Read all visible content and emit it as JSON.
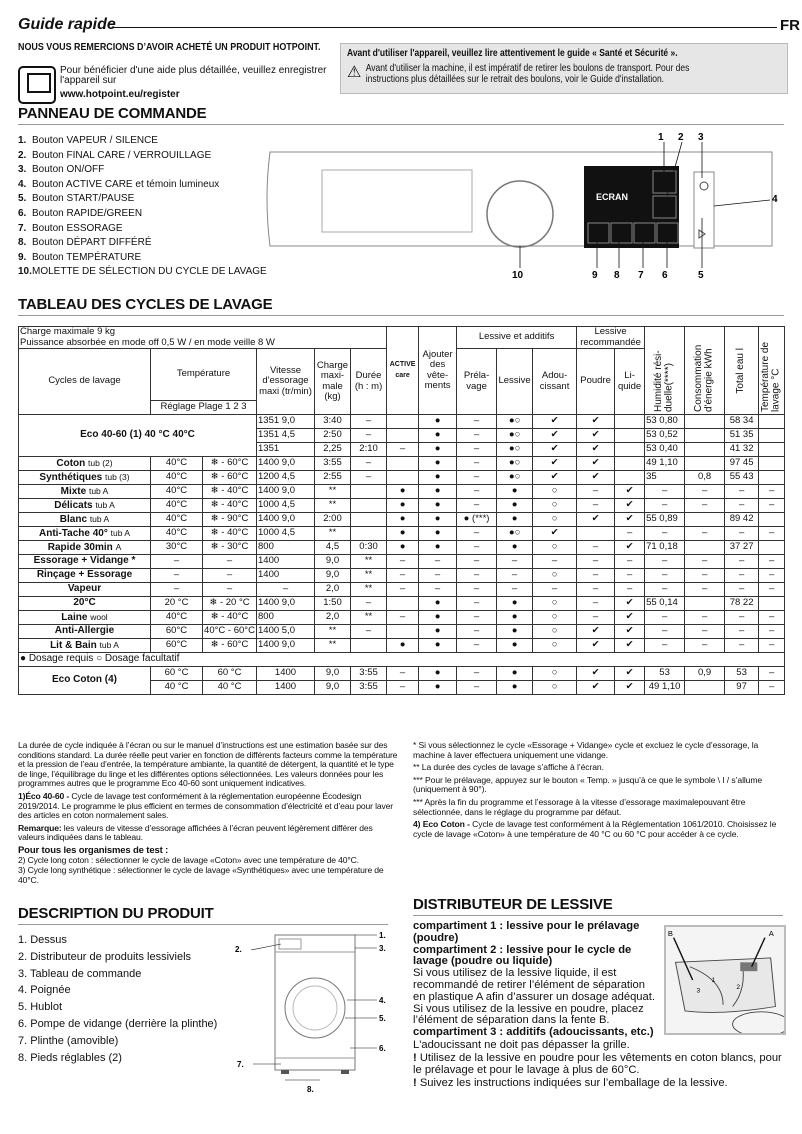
{
  "header": {
    "title": "Guide rapide",
    "lang": "FR"
  },
  "intro": {
    "thanks": "NOUS VOUS REMERCIONS D’AVOIR ACHETÉ UN PRODUIT HOTPOINT.",
    "register_text": "Pour bénéficier d'une aide plus détaillée, veuillez enregistrer l'appareil sur",
    "register_url": "www.hotpoint.eu/register"
  },
  "warning": {
    "title": "Avant d'utiliser l'appareil, veuillez lire attentivement le guide « Santé et Sécurité ».",
    "text": "Avant d'utiliser la machine, il est impératif de retirer les boulons de transport. Pour des instructions plus détaillées sur le retrait des boulons, voir le Guide d'installation."
  },
  "panel": {
    "title": "PANNEAU DE COMMANDE",
    "screen_label": "ECRAN",
    "items": [
      {
        "n": "1.",
        "label": "Bouton VAPEUR / SILENCE"
      },
      {
        "n": "2.",
        "label": "Bouton FINAL CARE / VERROUILLAGE"
      },
      {
        "n": "3.",
        "label": "Bouton ON/OFF"
      },
      {
        "n": "4.",
        "label": "Bouton ACTIVE CARE et témoin lumineux"
      },
      {
        "n": "5.",
        "label": "Bouton START/PAUSE"
      },
      {
        "n": "6.",
        "label": "Bouton RAPIDE/GREEN"
      },
      {
        "n": "7.",
        "label": "Bouton ESSORAGE"
      },
      {
        "n": "8.",
        "label": "Bouton DÉPART DIFFÉRÉ"
      },
      {
        "n": "9.",
        "label": "Bouton TEMPÉRATURE"
      },
      {
        "n": "10.",
        "label": "MOLETTE DE SÉLECTION DU CYCLE DE LAVAGE"
      }
    ],
    "callouts": [
      "1",
      "2",
      "3",
      "4",
      "5",
      "6",
      "7",
      "8",
      "9",
      "10"
    ]
  },
  "cycles": {
    "title": "TABLEAU DES CYCLES DE LAVAGE",
    "info": [
      "Charge maximale 9 kg",
      "Puissance absorbée en mode off  0,5 W / en mode veille 8 W"
    ],
    "headers": {
      "cycles": "Cycles de lavage",
      "temperature": "Température",
      "reglage_plage": "Réglage Plage 1 2 3",
      "vitesse": "Vitesse d'essorage maxi (tr/min)",
      "charge": "Charge maxi-male (kg)",
      "duree": "Durée (h : m)",
      "active_care": "ACTIVE care",
      "ajouter": "Ajouter des vête-ments",
      "lessive_additifs": "Lessive et additifs",
      "prelavage": "Préla-vage",
      "lessive": "Lessive",
      "adoucissant": "Adou-cissant",
      "lessive_recommandee": "Lessive recommandée",
      "poudre": "Poudre",
      "liquide": "Li-quide",
      "humidite": "Humidité rési-duelle(****)",
      "consommation": "Consommation d'énergie kWh",
      "eau": "Total eau l",
      "temp_lavage": "Température de lavage °C"
    },
    "rows": [
      {
        "name": "Eco 40-60 (1) 40 °C 40°C",
        "span": 3,
        "cells": [
          "1351 9,0",
          "3:40",
          "–",
          "",
          "●",
          "–",
          "●○",
          "✔",
          "✔",
          "",
          "53 0,80",
          "",
          "58 34",
          ""
        ]
      },
      {
        "cells": [
          "1351 4,5",
          "2:50",
          "–",
          "",
          "●",
          "–",
          "●○",
          "✔",
          "✔",
          "",
          "53 0,52",
          "",
          "51 35",
          ""
        ]
      },
      {
        "cells": [
          "1351",
          "2,25",
          "2:10",
          "–",
          "●",
          "–",
          "●○",
          "✔",
          "✔",
          "",
          "53 0,40",
          "",
          "41 32",
          ""
        ]
      },
      {
        "name": "Coton",
        "icons": "tub (2)",
        "cells": [
          "40°C",
          "❄ - 60°C",
          "1400 9,0",
          "3:55",
          "–",
          "",
          "●",
          "–",
          "●○",
          "✔",
          "✔",
          "",
          "49 1,10",
          "",
          "97 45",
          ""
        ]
      },
      {
        "name": "Synthétiques",
        "icons": "tub (3)",
        "cells": [
          "40°C",
          "❄ - 60°C",
          "1200 4,5",
          "2:55",
          "–",
          "",
          "●",
          "–",
          "●○",
          "✔",
          "✔",
          "",
          "35",
          "0,8",
          "55 43",
          ""
        ]
      },
      {
        "name": "Mixte",
        "icons": "tub A",
        "cells": [
          "40°C",
          "❄ - 40°C",
          "1400 9,0",
          "**",
          "",
          "●",
          "●",
          "–",
          "●",
          "○",
          "–",
          "✔",
          "–",
          "–",
          "–",
          "–"
        ]
      },
      {
        "name": "Délicats",
        "icons": "tub A",
        "cells": [
          "40°C",
          "❄ - 40°C",
          "1000 4,5",
          "**",
          "",
          "●",
          "●",
          "–",
          "●",
          "○",
          "–",
          "✔",
          "–",
          "–",
          "–",
          "–"
        ]
      },
      {
        "name": "Blanc",
        "icons": "tub A",
        "cells": [
          "40°C",
          "❄ - 90°C",
          "1400 9,0",
          "2:00",
          "",
          "●",
          "●",
          "● (***)",
          "●",
          "○",
          "✔",
          "✔",
          "55 0,89",
          "",
          "89 42",
          ""
        ]
      },
      {
        "name": "Anti-Tache 40°",
        "icons": "tub A",
        "cells": [
          "40°C",
          "❄ - 40°C",
          "1000 4,5",
          "**",
          "",
          "●",
          "●",
          "–",
          "●○",
          "✔",
          "",
          "–",
          "–",
          "–",
          "–",
          "–"
        ]
      },
      {
        "name": "Rapide 30min",
        "icons": "A",
        "cells": [
          "30°C",
          "❄ - 30°C",
          "800",
          "4,5",
          "0:30",
          "●",
          "●",
          "–",
          "●",
          "○",
          "–",
          "✔",
          "71 0,18",
          "",
          "37 27",
          ""
        ]
      },
      {
        "name": "Essorage + Vidange *",
        "cells": [
          "–",
          "–",
          "1400",
          "9,0",
          "**",
          "–",
          "–",
          "–",
          "–",
          "–",
          "–",
          "–",
          "–",
          "–",
          "–",
          "–"
        ]
      },
      {
        "name": "Rinçage + Essorage",
        "cells": [
          "–",
          "–",
          "1400",
          "9,0",
          "**",
          "–",
          "–",
          "–",
          "–",
          "○",
          "–",
          "–",
          "–",
          "–",
          "–",
          "–"
        ]
      },
      {
        "name": "Vapeur",
        "cells": [
          "–",
          "–",
          "–",
          "2,0",
          "**",
          "–",
          "–",
          "–",
          "–",
          "–",
          "–",
          "–",
          "–",
          "–",
          "–",
          "–"
        ]
      },
      {
        "name": "20°C",
        "cells": [
          "20 °C",
          "❄ - 20 °C",
          "1400 9,0",
          "1:50",
          "–",
          "",
          "●",
          "–",
          "●",
          "○",
          "–",
          "✔",
          "55 0,14",
          "",
          "78 22",
          ""
        ]
      },
      {
        "name": "Laine",
        "icons": "wool",
        "cells": [
          "40°C",
          "❄ - 40°C",
          "800",
          "2,0",
          "**",
          "–",
          "●",
          "–",
          "●",
          "○",
          "–",
          "✔",
          "–",
          "–",
          "–",
          "–"
        ]
      },
      {
        "name": "Anti-Allergie",
        "cells": [
          "60°C",
          "40°C - 60°C",
          "1400 5,0",
          "**",
          "–",
          "",
          "●",
          "–",
          "●",
          "○",
          "✔",
          "✔",
          "–",
          "–",
          "–",
          "–"
        ]
      },
      {
        "name": "Lit & Bain",
        "icons": "tub A",
        "cells": [
          "60°C",
          "❄ - 60°C",
          "1400 9,0",
          "**",
          "",
          "●",
          "●",
          "–",
          "●",
          "○",
          "✔",
          "✔",
          "–",
          "–",
          "–",
          "–"
        ]
      }
    ],
    "legend": "● Dosage requis  ○ Dosage facultatif",
    "eco_coton": {
      "name": "Eco Coton (4)",
      "rows": [
        [
          "60 °C",
          "60 °C",
          "1400",
          "9,0",
          "3:55",
          "–",
          "●",
          "–",
          "●",
          "○",
          "✔",
          "✔",
          "53",
          "0,9",
          "53",
          "–"
        ],
        [
          "40 °C",
          "40 °C",
          "1400",
          "9,0",
          "3:55",
          "–",
          "●",
          "–",
          "●",
          "○",
          "✔",
          "✔",
          "49 1,10",
          "",
          "97",
          "–"
        ]
      ]
    }
  },
  "notes_left": [
    "La durée de cycle indiquée à l’écran ou sur le manuel d’instructions est une estimation basée sur des conditions standard. La durée réelle peut varier en fonction de différents facteurs comme la température et la pression de l’eau d’entrée, la température ambiante, la quantité de détergent, la quantité et le type de linge, l’équilibrage du linge et les différentes options sélectionnées. Les valeurs données pour les programmes autres que le programme Eco 40-60 sont uniquement indicatives.",
    "1)Éco 40-60 - ",
    "Cycle de lavage test conformément à la réglementation européenne Écodesign 2019/2014. Le programme le plus efficient en termes de consommation d’électricité et d’eau pour laver des articles en coton normalement sales.",
    "Remarque:",
    " les valeurs de vitesse d’essorage affichées à l’écran peuvent légèrement différer des valeurs indiquées dans le tableau.",
    "Pour tous les organismes de test :",
    "2)  Cycle long coton : sélectionner le cycle de lavage «Coton» avec une température de 40°C.",
    "3)  Cycle long synthétique : sélectionner le cycle de lavage «Synthétiques» avec une température de 40°C."
  ],
  "notes_right": [
    "* Si vous sélectionnez le cycle «Essorage + Vidange» cycle et excluez le cycle d’essorage, la machine à laver effectuera uniquement une vidange.",
    "**  La durée des cycles de lavage s’affiche à l’écran.",
    "*** Pour le prélavage, appuyez sur le bouton « Temp. » jusqu’à ce que le symbole \\ I / s’allume (uniquement à 90°).",
    "*** Après la fin du programme et l’essorage à la vitesse d’essorage maximalepouvant être sélectionnée, dans le réglage du programme par défaut.",
    "4) Eco Coton - ",
    "Cycle de lavage test conformément à la Réglementation 1061/2010. Choisissez le cycle de lavage «Coton» à une température de 40 °C ou 60 °C pour accéder à ce cycle."
  ],
  "description": {
    "title": "DESCRIPTION DU PRODUIT",
    "items": [
      "1. Dessus",
      "2. Distributeur de produits lessiviels",
      "3. Tableau de commande",
      "4. Poignée",
      "5. Hublot",
      "6. Pompe de vidange (derrière la plinthe)",
      "7. Plinthe (amovible)",
      "8. Pieds réglables (2)"
    ],
    "callouts": [
      "1.",
      "2.",
      "3.",
      "4.",
      "5.",
      "6.",
      "7.",
      "8."
    ]
  },
  "distributor": {
    "title": "DISTRIBUTEUR DE LESSIVE",
    "c1": "compartiment 1 : lessive pour le prélavage (poudre)",
    "c2": "compartiment 2 : lessive pour le cycle de lavage (poudre ou liquide)",
    "p1": "Si vous utilisez de la lessive liquide, il est recommandé de retirer l’élément de séparation en plastique A afin d’assurer un dosage adéquat.",
    "p2": "Si vous utilisez de la lessive en poudre, placez l’élément de séparation dans la fente B.",
    "c3": "compartiment 3 : additifs (adoucissants, etc.)",
    "p3": "L'adoucissant ne doit pas dépasser la grille.",
    "w1": "Utilisez de la lessive en poudre pour les vêtements en coton blancs, pour le prélavage et pour le lavage à plus de 60°C.",
    "w2": "Suivez les instructions indiquées sur l’emballage de la lessive.",
    "labels": [
      "A",
      "B",
      "1",
      "2",
      "3"
    ]
  }
}
